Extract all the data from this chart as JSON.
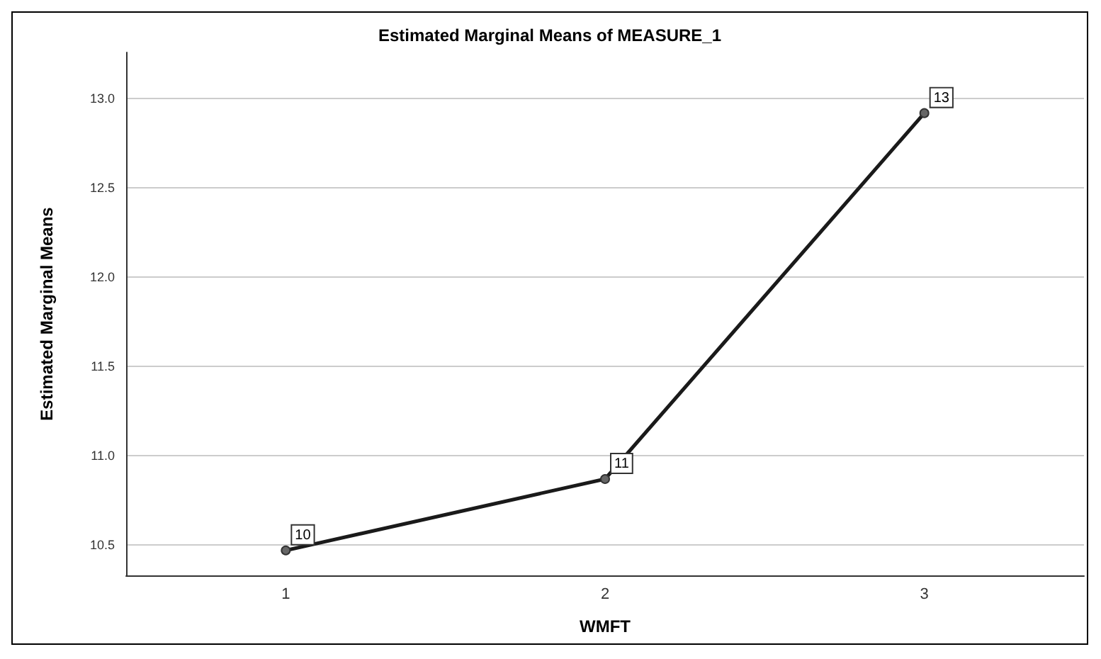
{
  "chart_data": {
    "type": "line",
    "title": "Estimated Marginal Means of MEASURE_1",
    "xlabel": "WMFT",
    "ylabel": "Estimated Marginal Means",
    "categories": [
      "1",
      "2",
      "3"
    ],
    "series": [
      {
        "color": "#1a1a1a",
        "values": [
          10.47,
          10.87,
          12.92
        ],
        "value_labels": [
          "10",
          "11",
          "13"
        ]
      }
    ],
    "ylim": [
      10.33,
      13.26
    ],
    "yticks": [
      {
        "value": 10.5,
        "label": "10.5"
      },
      {
        "value": 11.0,
        "label": "11.0"
      },
      {
        "value": 11.5,
        "label": "11.5"
      },
      {
        "value": 12.0,
        "label": "12.0"
      },
      {
        "value": 12.5,
        "label": "12.5"
      },
      {
        "value": 13.0,
        "label": "13.0"
      }
    ],
    "grid": "y",
    "marker": "circle",
    "line_style": "solid"
  }
}
